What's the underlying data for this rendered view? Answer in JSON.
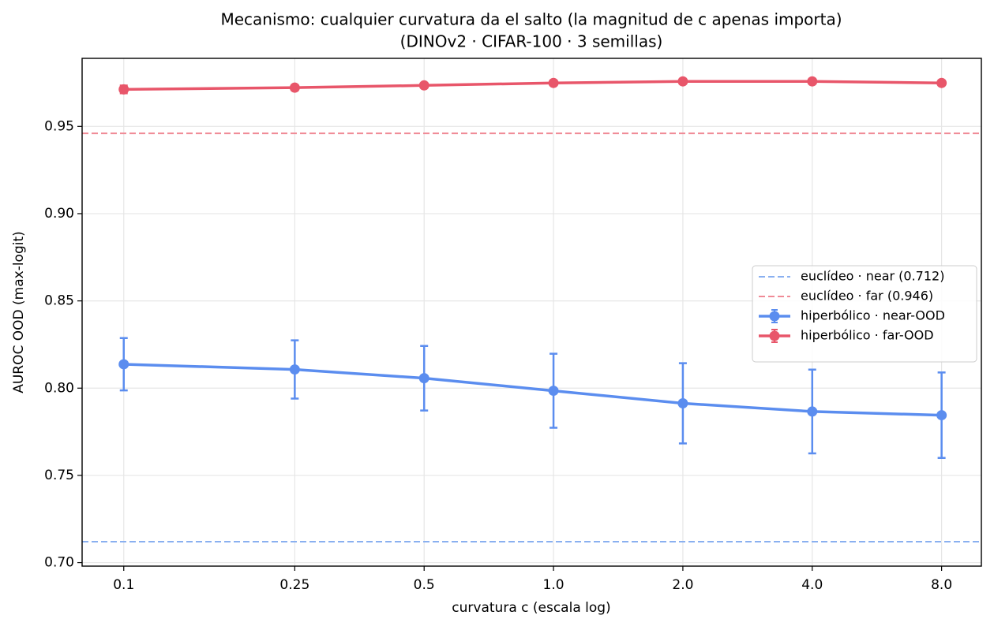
{
  "chart_data": {
    "type": "line",
    "title": "Mecanismo: cualquier curvatura da el salto (la magnitud de c apenas importa)",
    "subtitle": "(DINOv2 · CIFAR-100 · 3 semillas)",
    "x_label": "curvatura  c  (escala log)",
    "y_label": "AUROC OOD (max-logit)",
    "x": [
      0.1,
      0.25,
      0.5,
      1.0,
      2.0,
      4.0,
      8.0
    ],
    "x_scale": "log",
    "xlim": [
      0.08,
      9.9
    ],
    "xticks": [
      0.1,
      0.25,
      0.5,
      {
        "value": 1,
        "label": "1.0"
      },
      {
        "value": 2,
        "label": "2.0"
      },
      {
        "value": 4,
        "label": "4.0"
      },
      {
        "value": 8,
        "label": "8.0"
      }
    ],
    "ylim": [
      0.698,
      0.989
    ],
    "yticks": [
      {
        "value": 0.7,
        "label": "0.70"
      },
      0.75,
      {
        "value": 0.8,
        "label": "0.80"
      },
      0.85,
      {
        "value": 0.9,
        "label": "0.90"
      },
      0.95
    ],
    "grid": true,
    "legend": "center right",
    "reference_lines": [
      {
        "name": "euclídeo · near (0.712)",
        "value": 0.712,
        "color": "#8ab0f0"
      },
      {
        "name": "euclídeo · far (0.946)",
        "value": 0.946,
        "color": "#f08a96"
      }
    ],
    "series": [
      {
        "name": "hiperbólico · near-OOD",
        "color": "#5b8def",
        "values": [
          0.8137,
          0.8107,
          0.8057,
          0.7985,
          0.7913,
          0.7866,
          0.7845
        ],
        "errors": [
          0.015,
          0.0167,
          0.0185,
          0.0212,
          0.023,
          0.024,
          0.0245
        ]
      },
      {
        "name": "hiperbólico · far-OOD",
        "color": "#e8566a",
        "values": [
          0.9712,
          0.9722,
          0.9735,
          0.9749,
          0.9758,
          0.9758,
          0.9749
        ],
        "errors": [
          0.0022,
          0.0015,
          0.0008,
          0.0006,
          0.0005,
          0.0005,
          0.0006
        ]
      }
    ]
  }
}
